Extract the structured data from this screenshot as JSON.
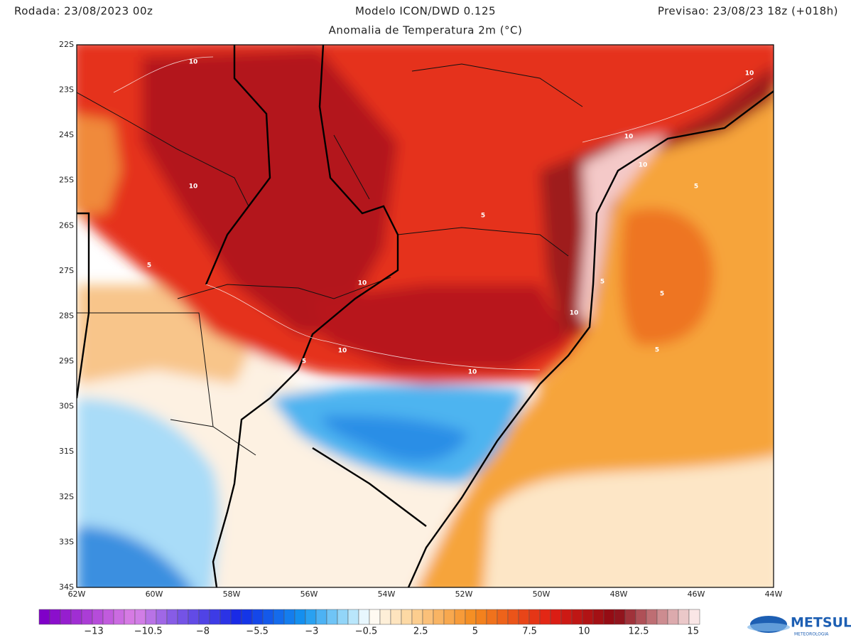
{
  "header": {
    "run": "Rodada: 23/08/2023 00z",
    "model": "Modelo ICON/DWD 0.125",
    "forecast": "Previsao: 23/08/23 18z (+018h)",
    "subtitle": "Anomalia de Temperatura 2m (°C)"
  },
  "map": {
    "lat_labels": [
      "22S",
      "23S",
      "24S",
      "25S",
      "26S",
      "27S",
      "28S",
      "29S",
      "30S",
      "31S",
      "32S",
      "33S",
      "34S"
    ],
    "lon_labels": [
      "62W",
      "60W",
      "58W",
      "56W",
      "54W",
      "52W",
      "50W",
      "48W",
      "46W",
      "44W"
    ],
    "contour_labels": [
      "10",
      "10",
      "10",
      "10",
      "10",
      "5",
      "5",
      "5",
      "10",
      "10",
      "5",
      "10",
      "10",
      "5",
      "5",
      "5"
    ]
  },
  "colorbar": {
    "labels": [
      "−13",
      "−10.5",
      "−8",
      "−5.5",
      "−3",
      "−0.5",
      "2.5",
      "5",
      "7.5",
      "10",
      "12.5",
      "15"
    ]
  },
  "logo": {
    "name": "METSUL",
    "tagline": "METEOROLOGIA"
  }
}
